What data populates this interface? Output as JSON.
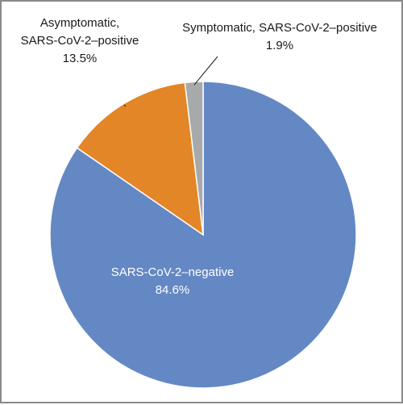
{
  "chart_data": {
    "type": "pie",
    "title": "",
    "legend": "none",
    "start_angle_deg": 0,
    "direction": "clockwise",
    "slices": [
      {
        "label_line1": "SARS-CoV-2–negative",
        "label_line2": "",
        "value_label": "84.6%",
        "value": 84.6,
        "color": "#6488c4"
      },
      {
        "label_line1": "Asymptomatic,",
        "label_line2": "SARS-CoV-2–positive",
        "value_label": "13.5%",
        "value": 13.5,
        "color": "#e38627"
      },
      {
        "label_line1": "Symptomatic, SARS-CoV-2–positive",
        "label_line2": "",
        "value_label": "1.9%",
        "value": 1.9,
        "color": "#a8a9ab"
      }
    ]
  }
}
